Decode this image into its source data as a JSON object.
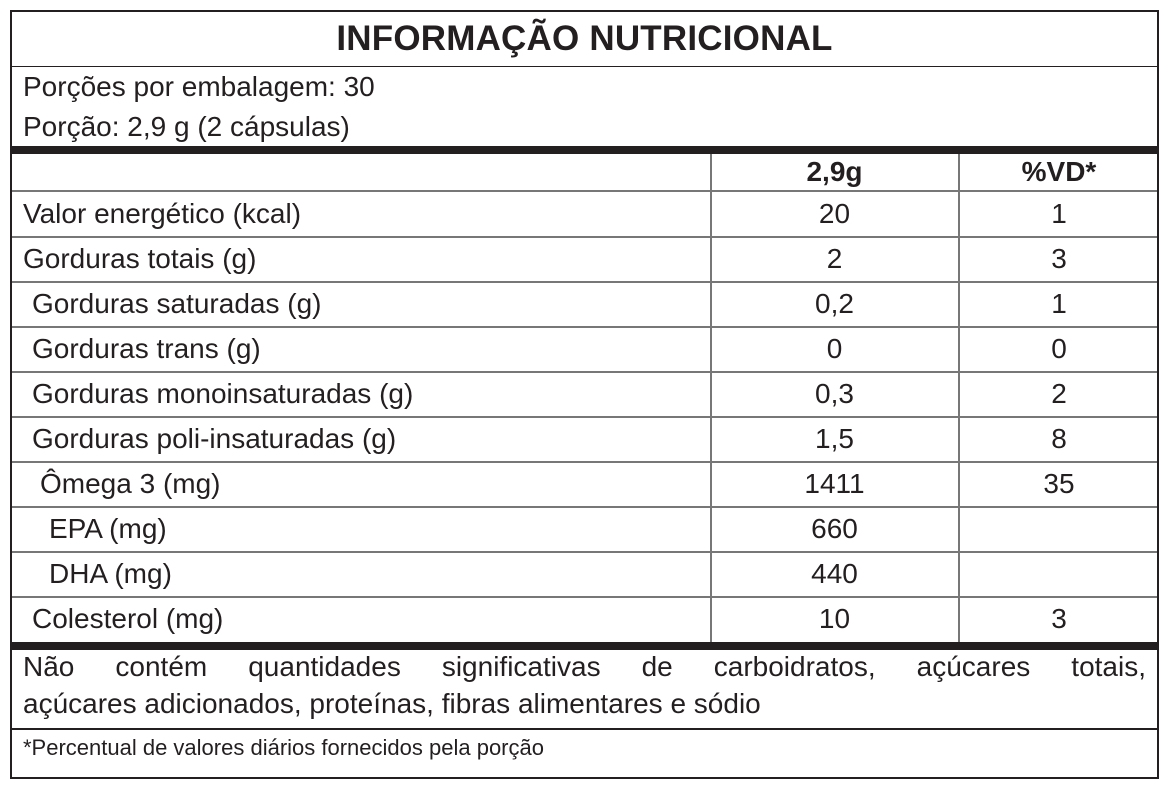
{
  "title": "INFORMAÇÃO NUTRICIONAL",
  "servings_per_package": "Porções por embalagem: 30",
  "serving_size": "Porção: 2,9 g (2 cápsulas)",
  "columns": {
    "amount": "2,9g",
    "dv": "%VD*"
  },
  "rows": [
    {
      "label": "Valor energético (kcal)",
      "amount": "20",
      "dv": "1"
    },
    {
      "label": "Gorduras totais (g)",
      "amount": "2",
      "dv": "3"
    },
    {
      "label": "Gorduras saturadas (g)",
      "amount": "0,2",
      "dv": "1"
    },
    {
      "label": "Gorduras trans (g)",
      "amount": "0",
      "dv": "0"
    },
    {
      "label": "Gorduras monoinsaturadas (g)",
      "amount": "0,3",
      "dv": "2"
    },
    {
      "label": "Gorduras poli-insaturadas (g)",
      "amount": "1,5",
      "dv": "8"
    },
    {
      "label": "Ômega 3 (mg)",
      "amount": "1411",
      "dv": "35"
    },
    {
      "label": "EPA (mg)",
      "amount": "660",
      "dv": ""
    },
    {
      "label": "DHA (mg)",
      "amount": "440",
      "dv": ""
    },
    {
      "label": "Colesterol (mg)",
      "amount": "10",
      "dv": "3"
    }
  ],
  "footnote_line1": "Não contém quantidades significativas de carboidratos, açúcares totais,",
  "footnote_line2": "açúcares adicionados, proteínas, fibras alimentares e sódio",
  "dv_note": "*Percentual de valores diários fornecidos pela porção"
}
